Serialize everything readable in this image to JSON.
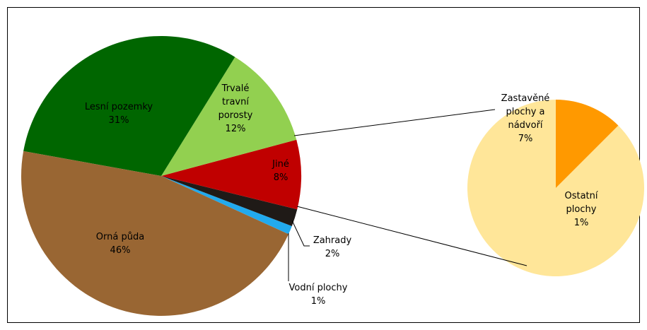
{
  "chart_data": {
    "type": "pie_of_pie",
    "categories": [
      "Orná půda",
      "Lesní pozemky",
      "Trvalé travní porosty",
      "Jiné",
      "Zahrady",
      "Vodní plochy"
    ],
    "values": [
      46,
      31,
      12,
      8,
      2,
      1
    ],
    "value_labels": [
      "46%",
      "31%",
      "12%",
      "8%",
      "2%",
      "1%"
    ],
    "colors": [
      "#996633",
      "#006600",
      "#92d050",
      "#c00000",
      "#1f1a17",
      "#22aaee"
    ],
    "secondary": {
      "categories": [
        "Ostatní plochy",
        "Zastavěné plochy a nádvoří"
      ],
      "values": [
        1,
        7
      ],
      "value_labels": [
        "1%",
        "7%"
      ],
      "colors": [
        "#ff9900",
        "#ffe699"
      ]
    }
  }
}
